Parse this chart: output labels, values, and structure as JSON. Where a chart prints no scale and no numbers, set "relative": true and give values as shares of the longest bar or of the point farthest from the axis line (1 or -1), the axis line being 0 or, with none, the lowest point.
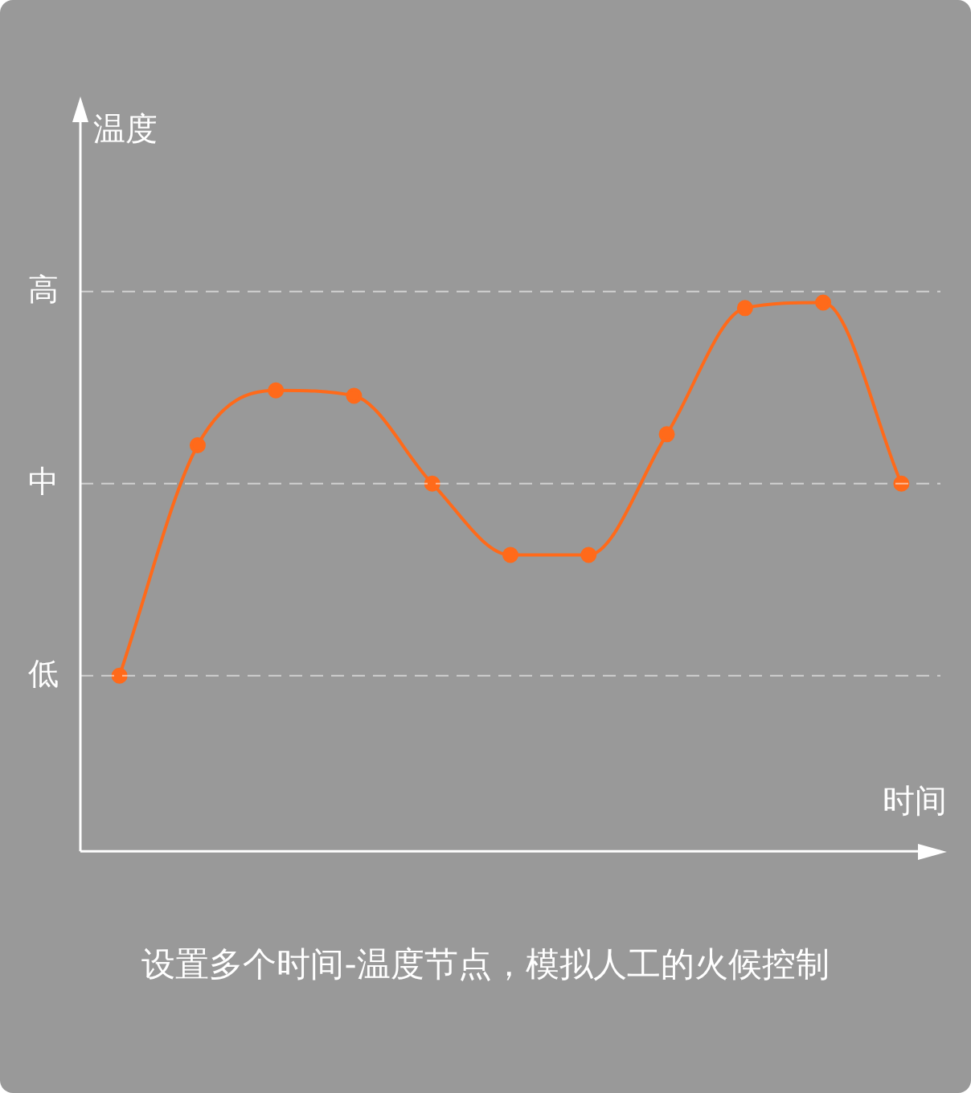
{
  "chart_data": {
    "type": "line",
    "xlabel": "时间",
    "ylabel": "温度",
    "relative": true,
    "categories": [
      null,
      null,
      null,
      null,
      null,
      null,
      null,
      null,
      null,
      null,
      null
    ],
    "series": [
      {
        "color": "#ff6a1a",
        "values": [
          0.32,
          0.74,
          0.84,
          0.83,
          0.67,
          0.54,
          0.54,
          0.76,
          0.99,
          1.0,
          0.67
        ]
      }
    ],
    "ref_lines": [
      {
        "axis": "y",
        "value": 0.32,
        "label": "低",
        "line_style": "dashed"
      },
      {
        "axis": "y",
        "value": 0.67,
        "label": "中",
        "line_style": "dashed"
      },
      {
        "axis": "y",
        "value": 1.02,
        "label": "高",
        "line_style": "dashed"
      }
    ],
    "marker": "circle",
    "legend": false,
    "annotations": [
      "设置多个时间-温度节点，模拟人工的火候控制"
    ]
  }
}
